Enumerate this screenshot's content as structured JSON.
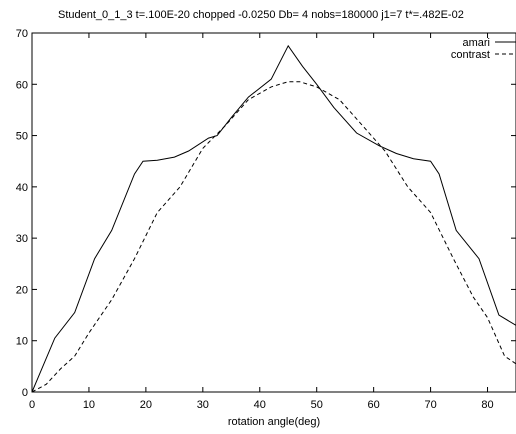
{
  "chart_data": {
    "type": "line",
    "title": "Student_0_1_3  t=.100E-20 chopped -0.0250    Db= 4 nobs=180000  j1=7  t*=.482E-02",
    "xlabel": "rotation angle(deg)",
    "ylabel": "",
    "xlim": [
      0,
      85
    ],
    "ylim": [
      0,
      70
    ],
    "x_ticks": [
      0,
      10,
      20,
      30,
      40,
      50,
      60,
      70,
      80
    ],
    "y_ticks": [
      0,
      10,
      20,
      30,
      40,
      50,
      60,
      70
    ],
    "grid": false,
    "legend_position": "top-right",
    "series": [
      {
        "name": "amari",
        "line_style": "solid",
        "color": "#000000",
        "x": [
          0,
          4,
          7.5,
          11,
          14,
          18,
          19.5,
          22,
          25,
          27.5,
          31,
          32.5,
          35,
          38,
          42,
          45,
          47.5,
          50,
          53,
          57,
          61,
          64,
          67,
          70,
          71.5,
          74.5,
          78.5,
          82,
          85
        ],
        "y": [
          0,
          10.5,
          15.5,
          26,
          31.5,
          42.5,
          45,
          45.2,
          45.8,
          47,
          49.5,
          50,
          53.5,
          57.5,
          61,
          67.5,
          63.5,
          60,
          55.5,
          50.5,
          48,
          46.5,
          45.5,
          45,
          42.5,
          31.5,
          26,
          15,
          13
        ]
      },
      {
        "name": "contrast",
        "line_style": "dashed",
        "color": "#000000",
        "x": [
          0,
          2.5,
          5,
          7.5,
          10,
          14,
          18,
          22,
          26,
          30,
          34,
          38,
          42,
          45,
          47,
          50,
          54,
          58,
          62,
          66,
          70,
          74,
          77.5,
          80,
          83,
          85
        ],
        "y": [
          0,
          1.5,
          4.5,
          7,
          11.5,
          18,
          26,
          35,
          40,
          47.5,
          52,
          57,
          59.5,
          60.5,
          60.5,
          59.5,
          57,
          52,
          47,
          40,
          35,
          26,
          18.5,
          14.5,
          7,
          5.5
        ]
      }
    ]
  }
}
